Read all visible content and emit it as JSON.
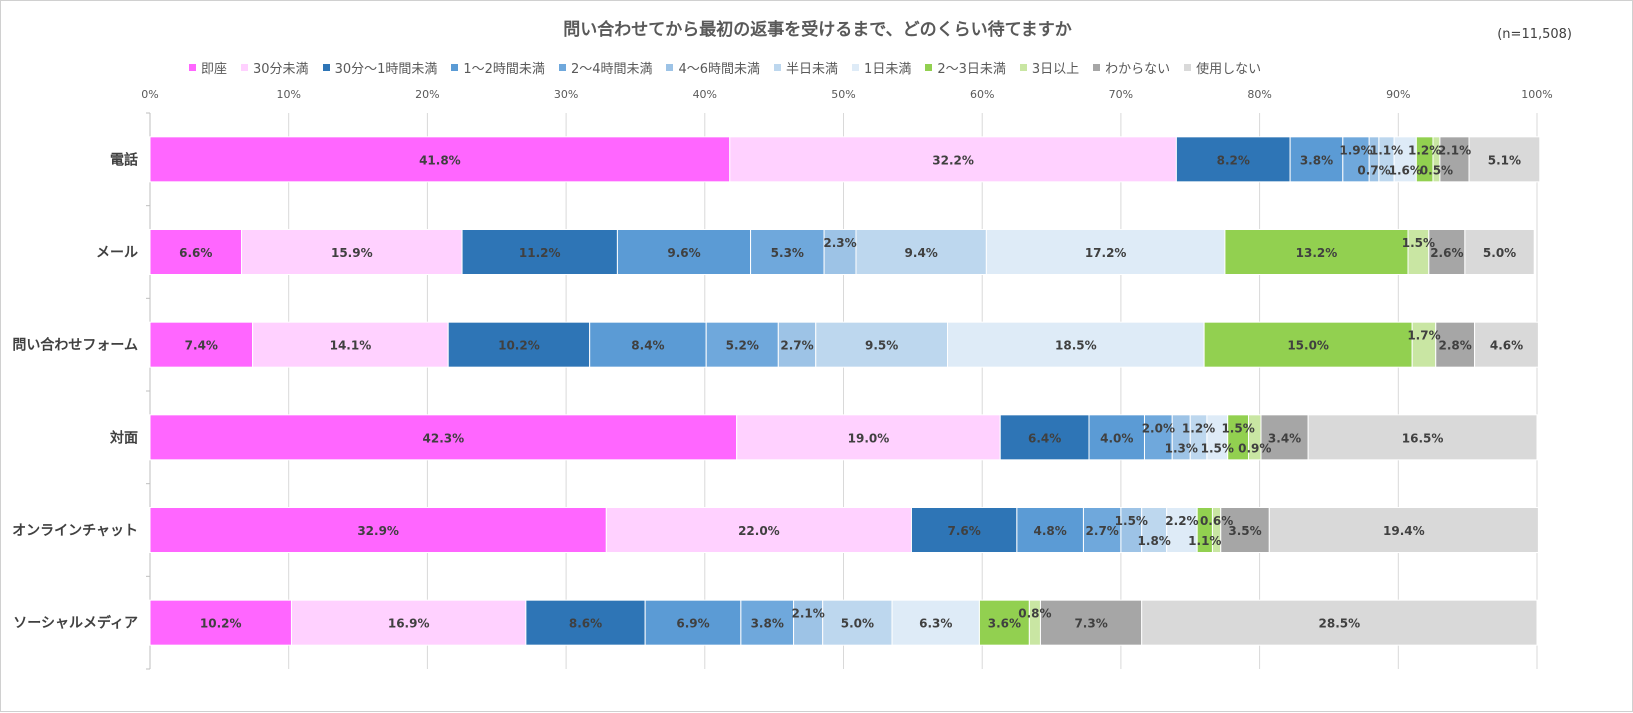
{
  "chart_data": {
    "type": "bar",
    "orientation": "horizontal",
    "stacked": "percent",
    "title": "問い合わせてから最初の返事を受けるまで、どのくらい待てますか",
    "note": "(n=11,508)",
    "xlim": [
      0,
      100
    ],
    "xticks": [
      "0%",
      "10%",
      "20%",
      "30%",
      "40%",
      "50%",
      "60%",
      "70%",
      "80%",
      "90%",
      "100%"
    ],
    "grid": true,
    "legend_position": "top",
    "categories": [
      "電話",
      "メール",
      "問い合わせフォーム",
      "対面",
      "オンラインチャット",
      "ソーシャルメディア"
    ],
    "series": [
      {
        "name": "即座",
        "color": "#ff66ff",
        "values": [
          41.8,
          6.6,
          7.4,
          42.3,
          32.9,
          10.2
        ]
      },
      {
        "name": "30分未満",
        "color": "#ffd1ff",
        "values": [
          32.2,
          15.9,
          14.1,
          19.0,
          22.0,
          16.9
        ]
      },
      {
        "name": "30分〜1時間未満",
        "color": "#2e75b6",
        "values": [
          8.2,
          11.2,
          10.2,
          6.4,
          7.6,
          8.6
        ]
      },
      {
        "name": "1〜2時間未満",
        "color": "#5b9bd5",
        "values": [
          3.8,
          9.6,
          8.4,
          4.0,
          4.8,
          6.9
        ]
      },
      {
        "name": "2〜4時間未満",
        "color": "#6fa8dc",
        "values": [
          1.9,
          5.3,
          5.2,
          2.0,
          2.7,
          3.8
        ]
      },
      {
        "name": "4〜6時間未満",
        "color": "#9dc3e6",
        "values": [
          0.7,
          2.3,
          2.7,
          1.3,
          1.5,
          2.1
        ]
      },
      {
        "name": "半日未満",
        "color": "#bdd7ee",
        "values": [
          1.1,
          9.4,
          9.5,
          1.2,
          1.8,
          5.0
        ]
      },
      {
        "name": "1日未満",
        "color": "#deebf7",
        "values": [
          1.6,
          17.2,
          18.5,
          1.5,
          2.2,
          6.3
        ]
      },
      {
        "name": "2〜3日未満",
        "color": "#92d050",
        "values": [
          1.2,
          13.2,
          15.0,
          1.5,
          1.1,
          3.6
        ]
      },
      {
        "name": "3日以上",
        "color": "#c9e6a3",
        "values": [
          0.5,
          1.5,
          1.7,
          0.9,
          0.6,
          0.8
        ]
      },
      {
        "name": "わからない",
        "color": "#a6a6a6",
        "values": [
          2.1,
          2.6,
          2.8,
          3.4,
          3.5,
          7.3
        ]
      },
      {
        "name": "使用しない",
        "color": "#d9d9d9",
        "values": [
          5.1,
          5.0,
          4.6,
          16.5,
          19.4,
          28.5
        ]
      }
    ]
  }
}
